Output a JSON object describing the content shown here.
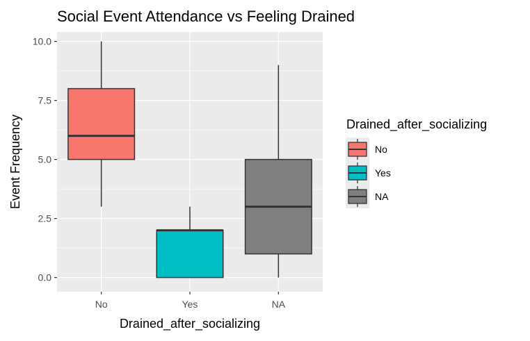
{
  "chart_data": {
    "type": "boxplot",
    "title": "Social Event Attendance vs Feeling Drained",
    "xlabel": "Drained_after_socializing",
    "ylabel": "Event Frequency",
    "categories": [
      "No",
      "Yes",
      "NA"
    ],
    "ylim": [
      -0.6,
      10.4
    ],
    "yticks": [
      0.0,
      2.5,
      5.0,
      7.5,
      10.0
    ],
    "ytick_labels": [
      "0.0",
      "2.5",
      "5.0",
      "7.5",
      "10.0"
    ],
    "grid": true,
    "boxes": [
      {
        "category": "No",
        "min": 3,
        "q1": 5,
        "median": 6,
        "q3": 8,
        "max": 10,
        "color": "#F8766D"
      },
      {
        "category": "Yes",
        "min": 0,
        "q1": 0,
        "median": 2,
        "q3": 2,
        "max": 3,
        "color": "#00BFC4"
      },
      {
        "category": "NA",
        "min": 0,
        "q1": 1,
        "median": 3,
        "q3": 5,
        "max": 9,
        "color": "#7F7F7F"
      }
    ],
    "legend": {
      "title": "Drained_after_socializing",
      "position": "right",
      "entries": [
        {
          "label": "No",
          "color": "#F8766D"
        },
        {
          "label": "Yes",
          "color": "#00BFC4"
        },
        {
          "label": "NA",
          "color": "#7F7F7F"
        }
      ]
    },
    "panel_background": "#EBEBEB",
    "gridline_color": "#FFFFFF",
    "outline_color": "#333333"
  }
}
